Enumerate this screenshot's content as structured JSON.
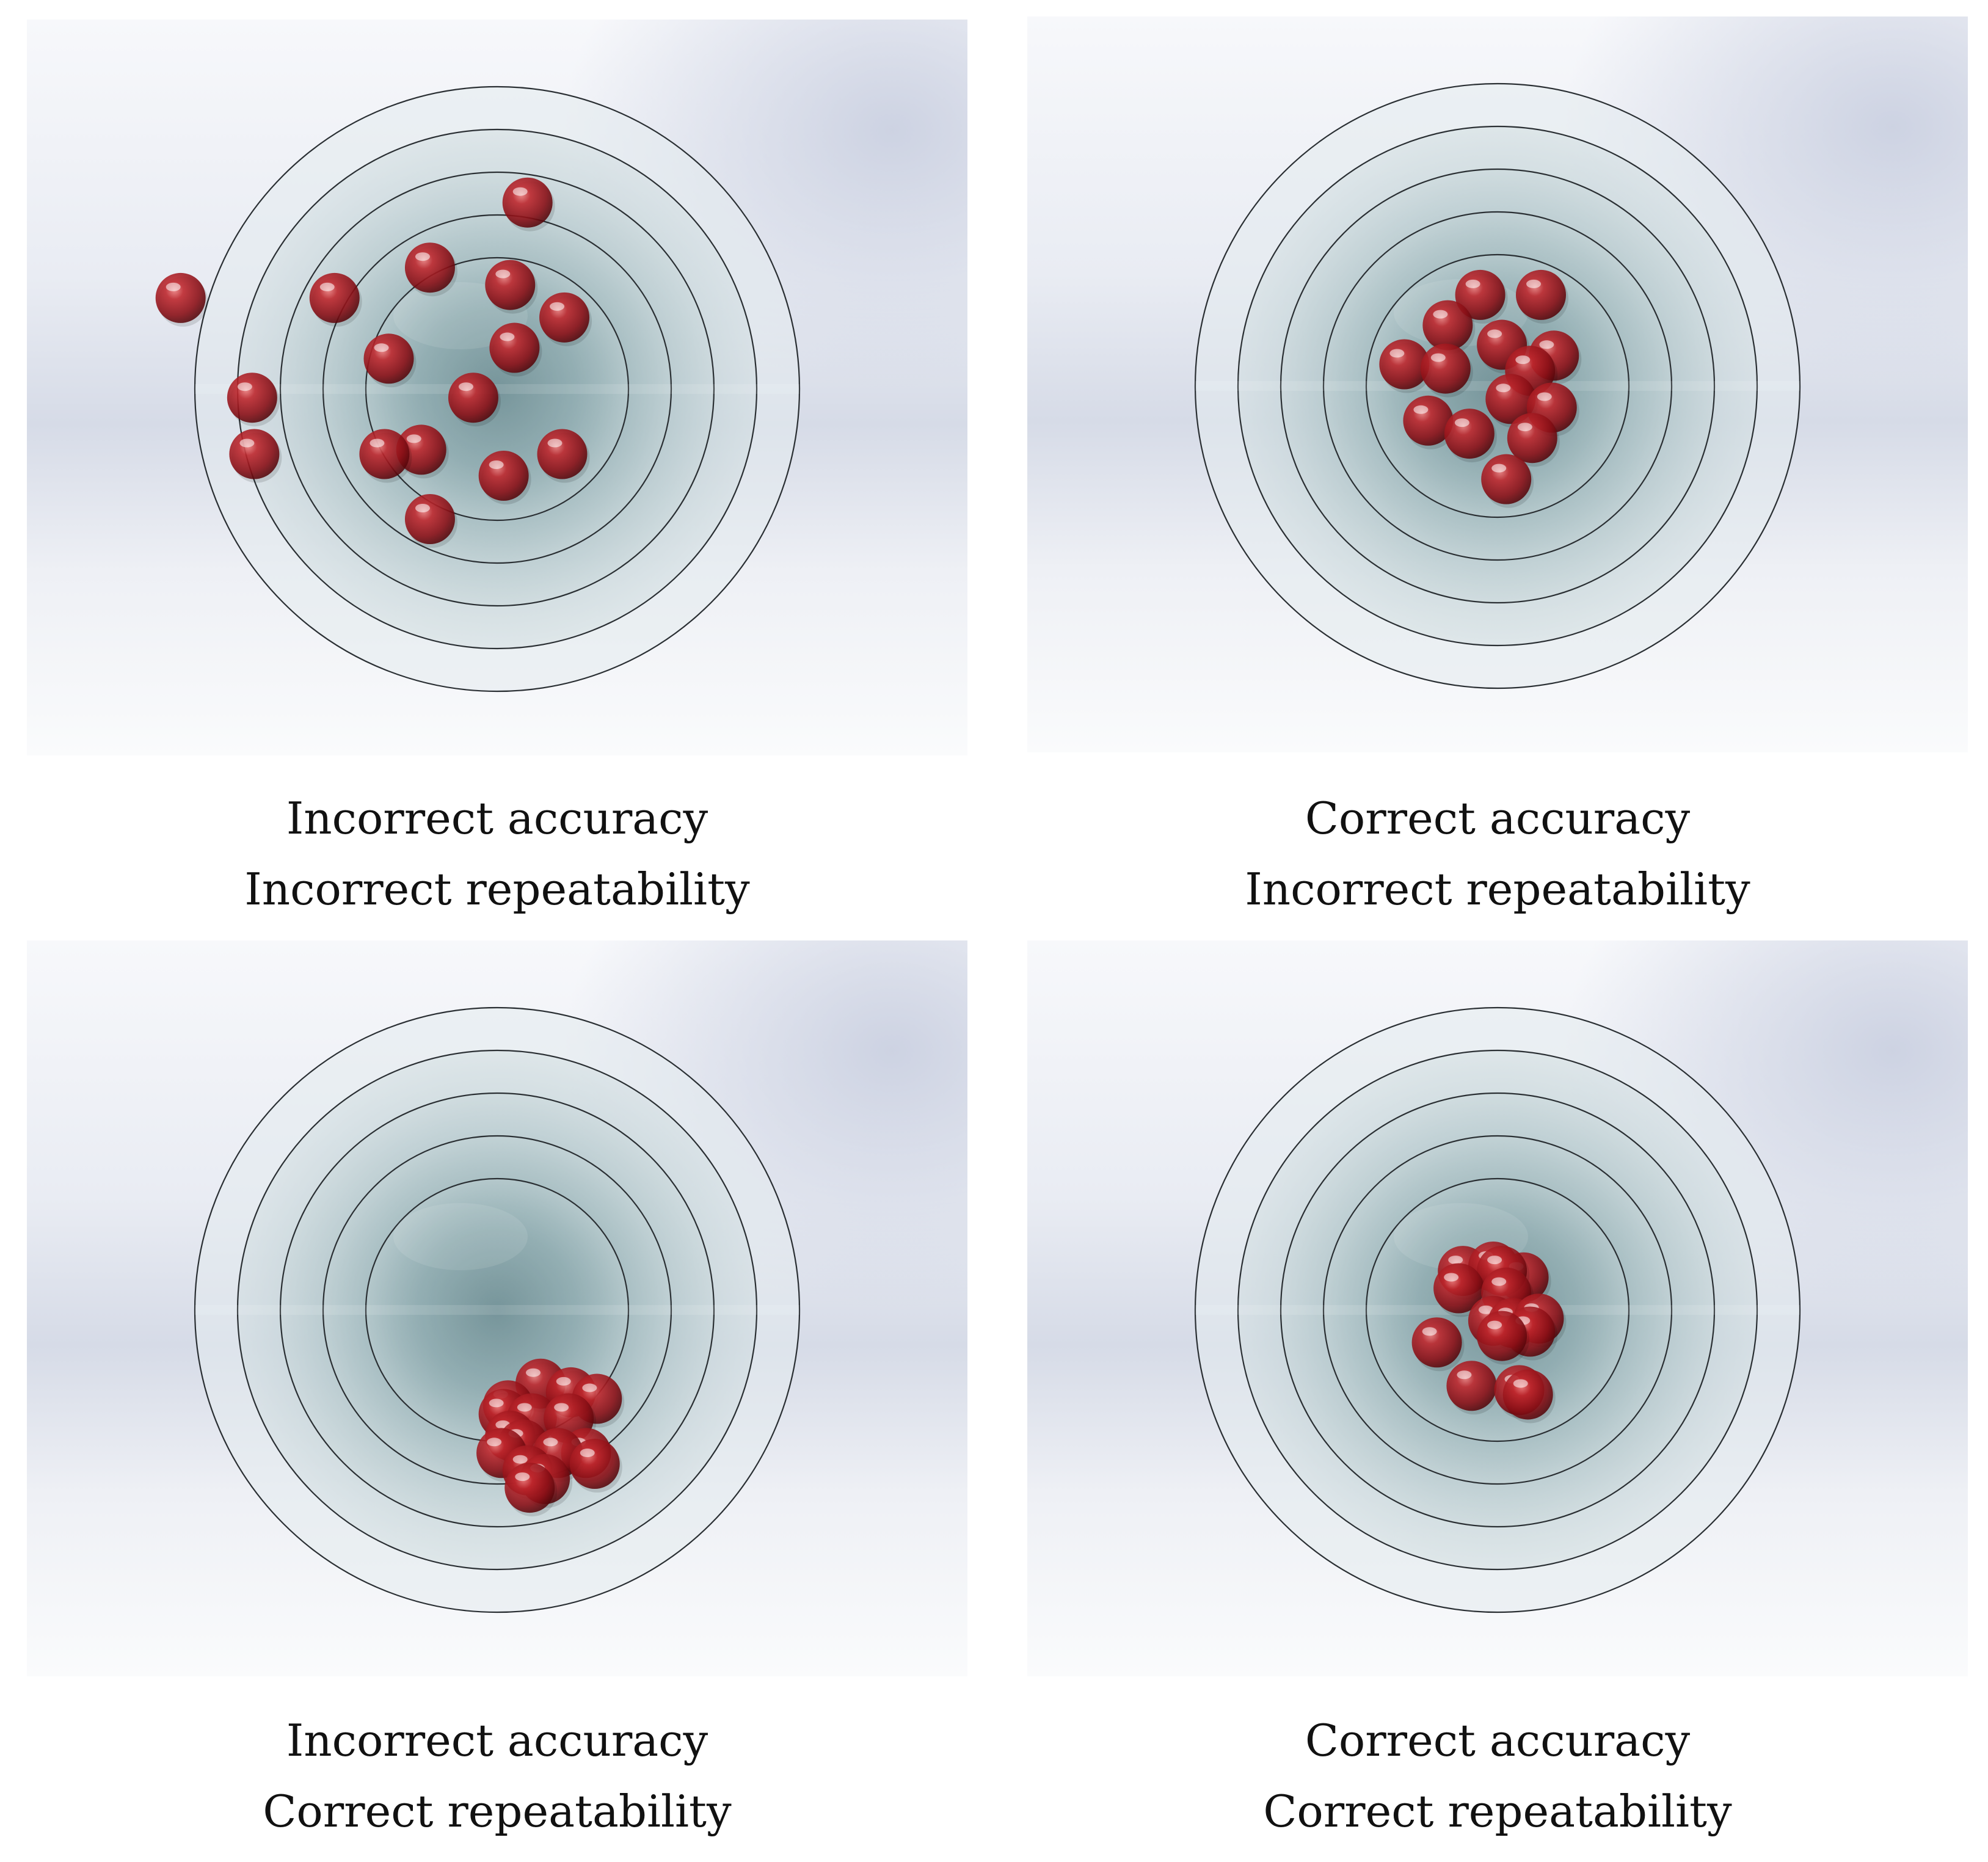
{
  "panels": [
    {
      "accuracy": "Incorrect accuracy",
      "repeatability": "Incorrect repeatability",
      "balls": [
        [
          0.14,
          0.86
        ],
        [
          -0.31,
          0.56
        ],
        [
          -0.75,
          0.42
        ],
        [
          0.06,
          0.48
        ],
        [
          0.31,
          0.33
        ],
        [
          0.08,
          0.19
        ],
        [
          -0.5,
          0.14
        ],
        [
          -1.13,
          -0.04
        ],
        [
          -1.46,
          0.42
        ],
        [
          -0.11,
          -0.04
        ],
        [
          -0.35,
          -0.28
        ],
        [
          -0.52,
          -0.3
        ],
        [
          -1.12,
          -0.3
        ],
        [
          0.3,
          -0.3
        ],
        [
          -0.31,
          -0.6
        ],
        [
          0.03,
          -0.4
        ]
      ]
    },
    {
      "accuracy": "Correct accuracy",
      "repeatability": "Incorrect repeatability",
      "balls": [
        [
          -0.08,
          0.42
        ],
        [
          0.2,
          0.42
        ],
        [
          -0.23,
          0.28
        ],
        [
          0.02,
          0.19
        ],
        [
          0.26,
          0.14
        ],
        [
          -0.43,
          0.1
        ],
        [
          -0.24,
          0.08
        ],
        [
          0.15,
          0.07
        ],
        [
          0.06,
          -0.06
        ],
        [
          -0.32,
          -0.16
        ],
        [
          -0.13,
          -0.22
        ],
        [
          0.25,
          -0.1
        ],
        [
          0.16,
          -0.24
        ],
        [
          0.04,
          -0.43
        ]
      ]
    },
    {
      "accuracy": "Incorrect accuracy",
      "repeatability": "Correct repeatability",
      "balls": [
        [
          0.2,
          -0.34
        ],
        [
          0.34,
          -0.38
        ],
        [
          0.46,
          -0.41
        ],
        [
          0.05,
          -0.44
        ],
        [
          0.03,
          -0.48
        ],
        [
          0.16,
          -0.5
        ],
        [
          0.33,
          -0.5
        ],
        [
          0.06,
          -0.58
        ],
        [
          0.12,
          -0.62
        ],
        [
          0.41,
          -0.66
        ],
        [
          0.28,
          -0.66
        ],
        [
          0.02,
          -0.66
        ],
        [
          0.45,
          -0.71
        ],
        [
          0.14,
          -0.74
        ],
        [
          0.22,
          -0.78
        ],
        [
          0.15,
          -0.82
        ]
      ]
    },
    {
      "accuracy": "Correct accuracy",
      "repeatability": "Correct repeatability",
      "balls": [
        [
          -0.16,
          0.18
        ],
        [
          -0.02,
          0.2
        ],
        [
          0.12,
          0.15
        ],
        [
          0.02,
          0.18
        ],
        [
          -0.18,
          0.1
        ],
        [
          0.04,
          0.08
        ],
        [
          -0.02,
          -0.05
        ],
        [
          0.07,
          -0.06
        ],
        [
          0.19,
          -0.04
        ],
        [
          0.15,
          -0.1
        ],
        [
          -0.28,
          -0.15
        ],
        [
          0.02,
          -0.12
        ],
        [
          -0.12,
          -0.35
        ],
        [
          0.1,
          -0.37
        ],
        [
          0.14,
          -0.39
        ]
      ]
    }
  ]
}
